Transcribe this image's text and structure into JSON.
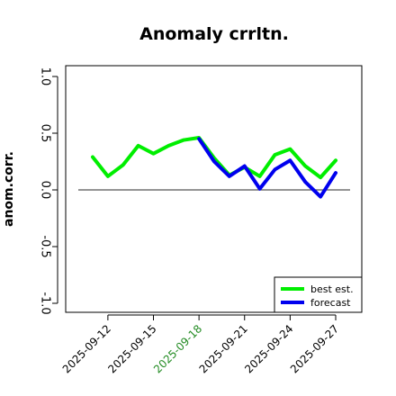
{
  "chart_data": {
    "type": "line",
    "title": "Anomaly crrltn.",
    "xlabel": "",
    "ylabel": "anom.corr.",
    "ylim": [
      -1.0,
      1.0
    ],
    "yticks": [
      "-1.0",
      "-0.5",
      "0.0",
      "0.5",
      "1.0"
    ],
    "x": [
      "2025-09-11",
      "2025-09-12",
      "2025-09-13",
      "2025-09-14",
      "2025-09-15",
      "2025-09-16",
      "2025-09-17",
      "2025-09-18",
      "2025-09-19",
      "2025-09-20",
      "2025-09-21",
      "2025-09-22",
      "2025-09-23",
      "2025-09-24",
      "2025-09-25",
      "2025-09-26",
      "2025-09-27"
    ],
    "xtick_labels": [
      "2025-09-12",
      "2025-09-15",
      "2025-09-18",
      "2025-09-21",
      "2025-09-24",
      "2025-09-27"
    ],
    "highlighted_tick": "2025-09-18",
    "reference_line": 0.0,
    "series": [
      {
        "name": "best est.",
        "color": "#00ee00",
        "values": [
          0.29,
          0.12,
          0.22,
          0.39,
          0.32,
          0.39,
          0.44,
          0.46,
          0.28,
          0.13,
          0.2,
          0.12,
          0.31,
          0.36,
          0.21,
          0.11,
          0.26
        ]
      },
      {
        "name": "forecast",
        "color": "#0000ee",
        "values": [
          null,
          null,
          null,
          null,
          null,
          null,
          null,
          0.45,
          0.25,
          0.12,
          0.21,
          0.01,
          0.18,
          0.26,
          0.07,
          -0.06,
          0.15
        ]
      }
    ],
    "legend_position": "bottom-right",
    "colors": {
      "tick_highlight": "#228b22",
      "reference_line": "#555555"
    }
  }
}
